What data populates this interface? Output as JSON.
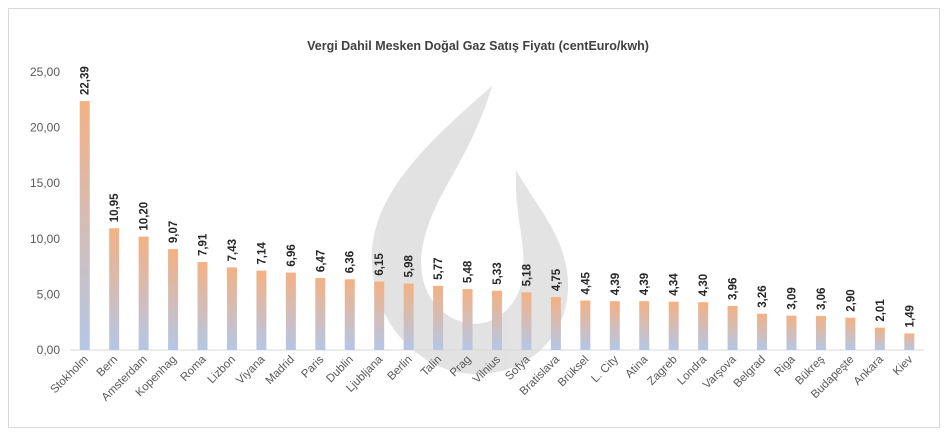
{
  "chart_data": {
    "type": "bar",
    "title": "Vergi Dahil Mesken Doğal Gaz Satış Fiyatı (centEuro/kwh)",
    "xlabel": "",
    "ylabel": "",
    "ylim": [
      0,
      25
    ],
    "yticks": [
      "0,00",
      "5,00",
      "10,00",
      "15,00",
      "20,00",
      "25,00"
    ],
    "grid": false,
    "legend": "none",
    "categories": [
      "Stokholm",
      "Bern",
      "Amsterdam",
      "Kopenhag",
      "Roma",
      "Lizbon",
      "Viyana",
      "Madrid",
      "Paris",
      "Dublin",
      "Ljubljana",
      "Berlin",
      "Talin",
      "Prag",
      "Vilnius",
      "Sofya",
      "Bratislava",
      "Brüksel",
      "L. City",
      "Atina",
      "Zagreb",
      "Londra",
      "Varşova",
      "Belgrad",
      "Riga",
      "Bükreş",
      "Budapeşte",
      "Ankara",
      "Kiev"
    ],
    "values": [
      22.39,
      10.95,
      10.2,
      9.07,
      7.91,
      7.43,
      7.14,
      6.96,
      6.47,
      6.36,
      6.15,
      5.98,
      5.77,
      5.48,
      5.33,
      5.18,
      4.75,
      4.45,
      4.39,
      4.39,
      4.34,
      4.3,
      3.96,
      3.26,
      3.09,
      3.06,
      2.9,
      2.01,
      1.49
    ],
    "data_labels": [
      "22,39",
      "10,95",
      "10,20",
      "9,07",
      "7,91",
      "7,43",
      "7,14",
      "6,96",
      "6,47",
      "6,36",
      "6,15",
      "5,98",
      "5,77",
      "5,48",
      "5,33",
      "5,18",
      "4,75",
      "4,45",
      "4,39",
      "4,39",
      "4,34",
      "4,30",
      "3,96",
      "3,26",
      "3,09",
      "3,06",
      "2,90",
      "2,01",
      "1,49"
    ],
    "colors": {
      "bar_top": "#f4b183",
      "bar_bottom": "#b4c7e7",
      "axis": "#d9d9d9",
      "watermark": "#d9d9d9"
    }
  }
}
